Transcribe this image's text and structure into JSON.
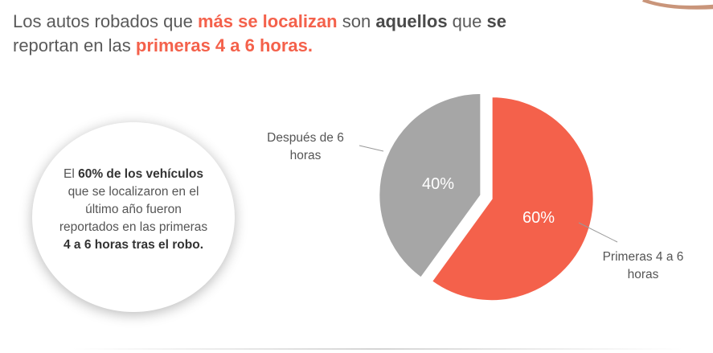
{
  "headline": {
    "t1": "Los autos robados que ",
    "t2": "más se localizan",
    "t3": " son ",
    "t4": "aquellos",
    "t5": " que ",
    "t6": "se",
    "t7": "reportan en las ",
    "t8": "primeras 4 a 6 horas."
  },
  "callout": {
    "t1": "El ",
    "t2": "60% de los vehículos",
    "t3": "que se localizaron en el",
    "t4": "último año fueron",
    "t5": "reportados en las primeras",
    "t6": "4 a 6 horas tras el robo."
  },
  "colors": {
    "accent": "#f4614b",
    "gray_slice": "#a6a6a6",
    "text": "#555555"
  },
  "chart_data": {
    "type": "pie",
    "title": "",
    "slices": [
      {
        "label": "Primeras 4 a 6 horas",
        "value": 60,
        "display": "60%",
        "color": "#f4614b"
      },
      {
        "label": "Después de 6 horas",
        "value": 40,
        "display": "40%",
        "color": "#a6a6a6"
      }
    ],
    "category_labels": [
      {
        "line1": "Primeras 4 a 6",
        "line2": "horas"
      },
      {
        "line1": "Después de 6",
        "line2": "horas"
      }
    ]
  }
}
